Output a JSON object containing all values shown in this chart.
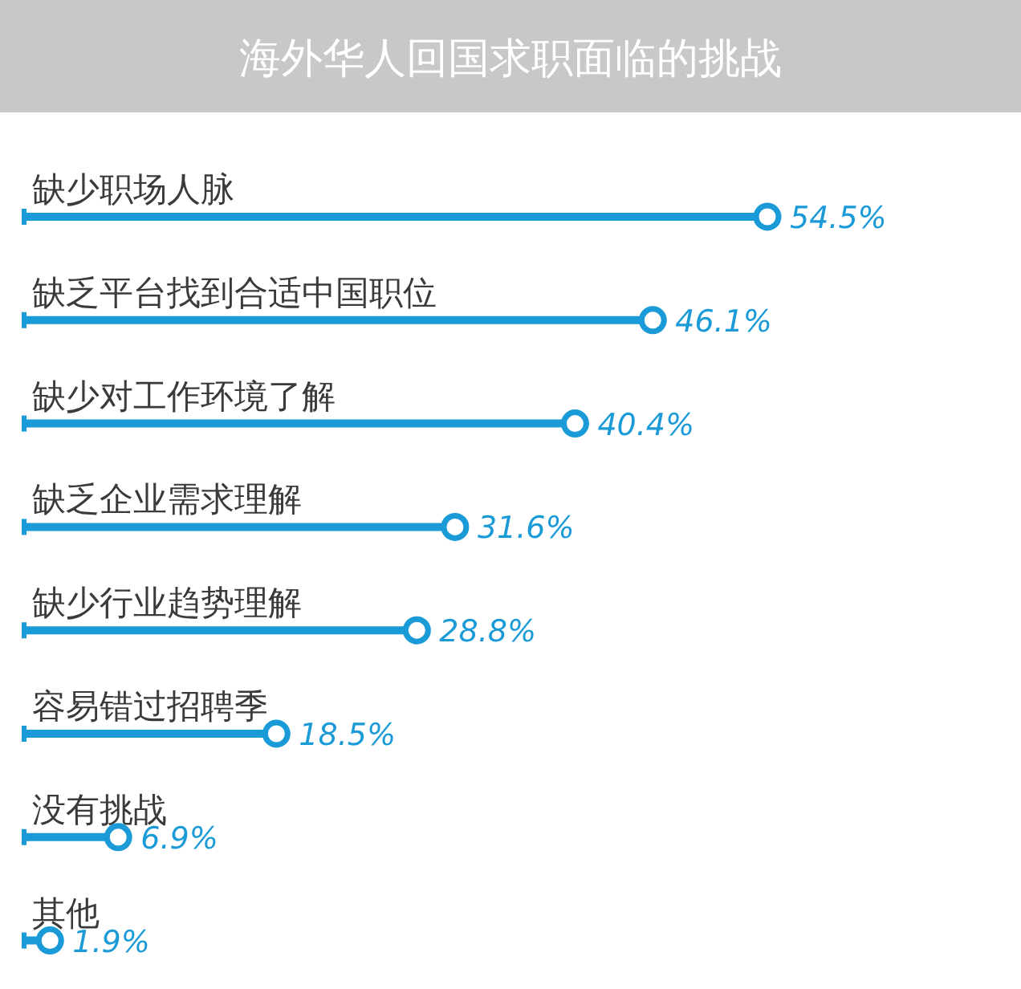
{
  "chart_data": {
    "type": "lollipop",
    "orientation": "horizontal",
    "title": "海外华人回国求职面临的挑战",
    "categories": [
      "缺少职场人脉",
      "缺乏平台找到合适中国职位",
      "缺少对工作环境了解",
      "缺乏企业需求理解",
      "缺少行业趋势理解",
      "容易错过招聘季",
      "没有挑战",
      "其他"
    ],
    "values": [
      54.5,
      46.1,
      40.4,
      31.6,
      28.8,
      18.5,
      6.9,
      1.9
    ],
    "value_labels": [
      "54.5%",
      "46.1%",
      "40.4%",
      "31.6%",
      "28.8%",
      "18.5%",
      "6.9%",
      "1.9%"
    ],
    "color": "#1a9ad6",
    "marker": "circle"
  }
}
